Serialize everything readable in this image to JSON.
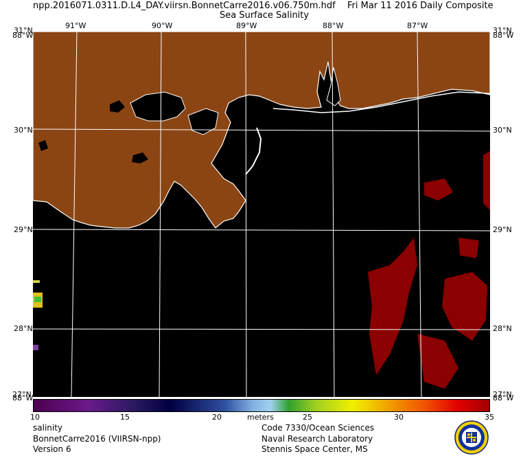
{
  "header": {
    "filename": "npp.2016071.0311.D.L4_DAY.viirsn.BonnetCarre2016.v06.750m.hdf",
    "date": "Fri Mar 11 2016 Daily Composite",
    "product": "Sea Surface Salinity"
  },
  "map": {
    "lon_labels": [
      "91°W",
      "90°W",
      "89°W",
      "88°W",
      "87°W"
    ],
    "lat_labels": [
      "30°N",
      "29°N",
      "28°N"
    ],
    "corner_top_left": "31°N",
    "corner_top_left_over": "88°W",
    "corner_top_right": "31°N",
    "corner_top_right_over": "88°W",
    "corner_bottom_left": "27°N",
    "corner_bottom_left_over": "88°W",
    "corner_bottom_right": "27°N",
    "corner_bottom_right_over": "88°W",
    "colors": {
      "land": "#8b4513",
      "water": "#000000",
      "coast": "#ffffff",
      "high_salinity": "#8b0000"
    }
  },
  "colorbar": {
    "min": 10,
    "max": 35,
    "ticks": [
      "10",
      "15",
      "20",
      "25",
      "30",
      "35"
    ],
    "units": "meters"
  },
  "footer": {
    "left": [
      "salinity",
      "BonnetCarre2016 (VIIRSN-npp)",
      "Version 6"
    ],
    "right": [
      "Code 7330/Ocean Sciences",
      "Naval Research Laboratory",
      "Stennis Space Center, MS"
    ]
  }
}
